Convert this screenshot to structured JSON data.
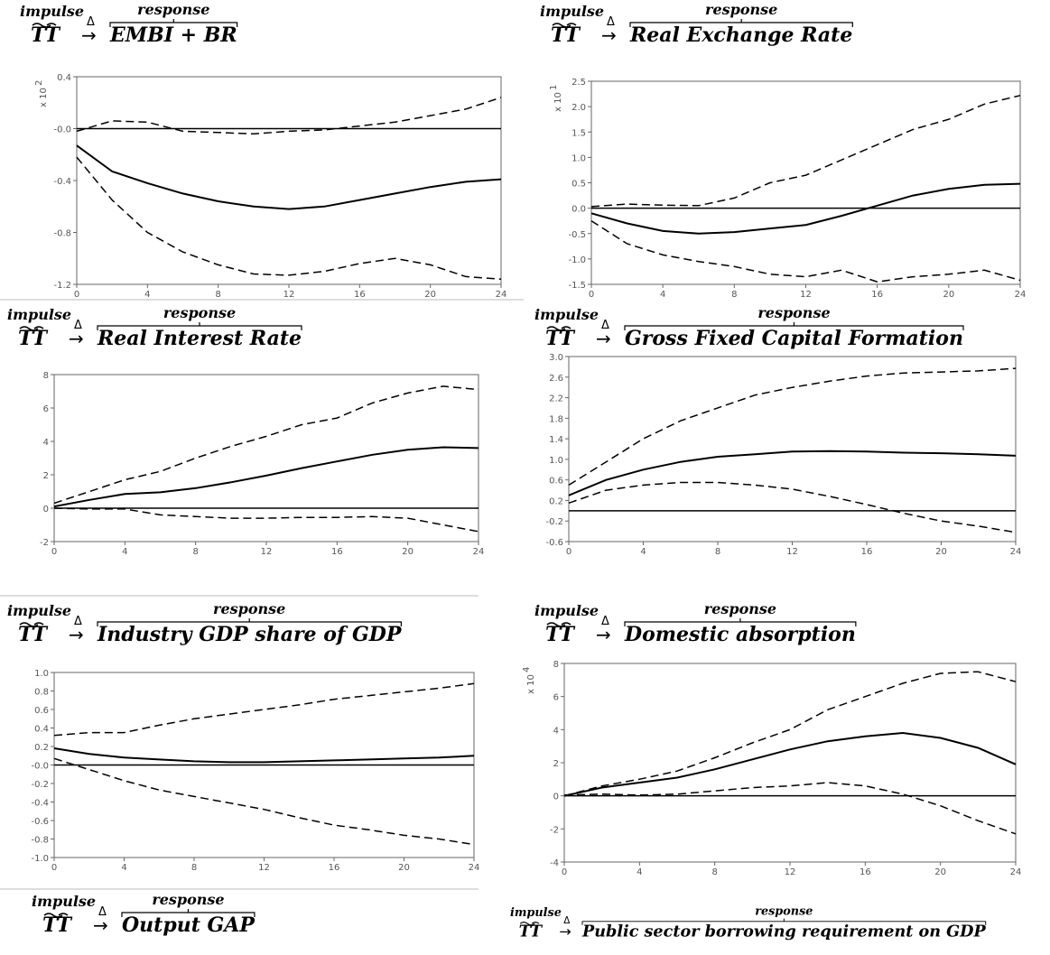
{
  "chart_data": [
    {
      "type": "line",
      "impulse_label": "impulse",
      "response_label": "response",
      "impulse_var": "TT",
      "operator": "Δ",
      "arrow": "→",
      "title": "EMBI + BR",
      "scale_label": "x 10",
      "scale_exponent": "2",
      "x": [
        0,
        2,
        4,
        6,
        8,
        10,
        12,
        14,
        16,
        18,
        20,
        22,
        24
      ],
      "xlim": [
        0,
        24
      ],
      "xticks": [
        0,
        4,
        8,
        12,
        16,
        20,
        24
      ],
      "ylim": [
        -1.2,
        0.4
      ],
      "yticks": [
        -1.2,
        -0.8,
        -0.4,
        {
          "value": 0,
          "label": "-0.0"
        },
        0.4
      ],
      "hline": 0,
      "series": [
        {
          "color": "#000",
          "dashed": true,
          "values": [
            -0.02,
            0.06,
            0.05,
            -0.02,
            -0.03,
            -0.04,
            -0.02,
            -0.01,
            0.02,
            0.05,
            0.1,
            0.15,
            0.24
          ]
        },
        {
          "color": "#000",
          "dashed": false,
          "values": [
            -0.13,
            -0.33,
            -0.42,
            -0.5,
            -0.56,
            -0.6,
            -0.62,
            -0.6,
            -0.55,
            -0.5,
            -0.45,
            -0.41,
            -0.39
          ]
        },
        {
          "color": "#000",
          "dashed": true,
          "values": [
            -0.22,
            -0.55,
            -0.8,
            -0.95,
            -1.05,
            -1.12,
            -1.13,
            -1.1,
            -1.04,
            -1.0,
            -1.05,
            -1.14,
            -1.16
          ]
        }
      ]
    },
    {
      "type": "line",
      "impulse_label": "impulse",
      "response_label": "response",
      "impulse_var": "TT",
      "operator": "Δ",
      "arrow": "→",
      "title": "Real Exchange Rate",
      "scale_label": "x 10",
      "scale_exponent": "1",
      "x": [
        0,
        2,
        4,
        6,
        8,
        10,
        12,
        14,
        16,
        18,
        20,
        22,
        24
      ],
      "xlim": [
        0,
        24
      ],
      "xticks": [
        0,
        4,
        8,
        12,
        16,
        20,
        24
      ],
      "ylim": [
        -1.5,
        2.5
      ],
      "yticks": [
        -1.5,
        {
          "value": -1,
          "label": "-1.0"
        },
        -0.5,
        {
          "value": 0,
          "label": "0.0"
        },
        0.5,
        {
          "value": 1,
          "label": "1.0"
        },
        1.5,
        {
          "value": 2,
          "label": "2.0"
        },
        2.5
      ],
      "hline": 0,
      "series": [
        {
          "color": "#000",
          "dashed": true,
          "values": [
            0.03,
            0.08,
            0.06,
            0.05,
            0.2,
            0.5,
            0.65,
            0.95,
            1.25,
            1.55,
            1.75,
            2.05,
            2.22
          ]
        },
        {
          "color": "#000",
          "dashed": false,
          "values": [
            -0.1,
            -0.3,
            -0.45,
            -0.5,
            -0.47,
            -0.4,
            -0.33,
            -0.15,
            0.05,
            0.25,
            0.38,
            0.46,
            0.48
          ]
        },
        {
          "color": "#000",
          "dashed": true,
          "values": [
            -0.25,
            -0.7,
            -0.92,
            -1.05,
            -1.15,
            -1.3,
            -1.35,
            -1.22,
            -1.45,
            -1.35,
            -1.3,
            -1.22,
            -1.42
          ]
        }
      ]
    },
    {
      "type": "line",
      "impulse_label": "impulse",
      "response_label": "response",
      "impulse_var": "TT",
      "operator": "Δ",
      "arrow": "→",
      "title": "Real Interest Rate",
      "x": [
        0,
        2,
        4,
        6,
        8,
        10,
        12,
        14,
        16,
        18,
        20,
        22,
        24
      ],
      "xlim": [
        0,
        24
      ],
      "xticks": [
        0,
        4,
        8,
        12,
        16,
        20,
        24
      ],
      "ylim": [
        -2,
        8
      ],
      "yticks": [
        -2,
        0,
        2,
        4,
        6,
        8
      ],
      "hline": 0,
      "series": [
        {
          "color": "#000",
          "dashed": true,
          "values": [
            0.3,
            1.0,
            1.7,
            2.2,
            3.0,
            3.7,
            4.3,
            5.0,
            5.4,
            6.3,
            6.9,
            7.3,
            7.1
          ]
        },
        {
          "color": "#000",
          "dashed": false,
          "values": [
            0.1,
            0.5,
            0.85,
            0.95,
            1.2,
            1.55,
            1.95,
            2.4,
            2.8,
            3.2,
            3.5,
            3.65,
            3.6
          ]
        },
        {
          "color": "#000",
          "dashed": true,
          "values": [
            0,
            -0.05,
            -0.05,
            -0.4,
            -0.5,
            -0.6,
            -0.6,
            -0.55,
            -0.55,
            -0.5,
            -0.6,
            -1.0,
            -1.4
          ]
        }
      ]
    },
    {
      "type": "line",
      "impulse_label": "impulse",
      "response_label": "response",
      "impulse_var": "TT",
      "operator": "Δ",
      "arrow": "→",
      "title": "Gross Fixed Capital Formation",
      "x": [
        0,
        2,
        4,
        6,
        8,
        10,
        12,
        14,
        16,
        18,
        20,
        22,
        24
      ],
      "xlim": [
        0,
        24
      ],
      "xticks": [
        0,
        4,
        8,
        12,
        16,
        20,
        24
      ],
      "ylim": [
        -0.6,
        3.0
      ],
      "yticks": [
        -0.6,
        -0.2,
        0.2,
        0.6,
        {
          "value": 1,
          "label": "1.0"
        },
        1.4,
        1.8,
        2.2,
        2.6,
        {
          "value": 3,
          "label": "3.0"
        }
      ],
      "hline": 0,
      "series": [
        {
          "color": "#000",
          "dashed": true,
          "values": [
            0.5,
            0.95,
            1.4,
            1.75,
            2.0,
            2.25,
            2.4,
            2.52,
            2.62,
            2.68,
            2.7,
            2.72,
            2.77
          ]
        },
        {
          "color": "#000",
          "dashed": false,
          "values": [
            0.3,
            0.6,
            0.8,
            0.95,
            1.05,
            1.1,
            1.15,
            1.16,
            1.15,
            1.13,
            1.12,
            1.1,
            1.07
          ]
        },
        {
          "color": "#000",
          "dashed": true,
          "values": [
            0.15,
            0.4,
            0.5,
            0.55,
            0.55,
            0.5,
            0.42,
            0.28,
            0.12,
            -0.05,
            -0.2,
            -0.3,
            -0.42
          ]
        }
      ]
    },
    {
      "type": "line",
      "impulse_label": "impulse",
      "response_label": "response",
      "impulse_var": "TT",
      "operator": "Δ",
      "arrow": "→",
      "title": "Industry GDP share of GDP",
      "x": [
        0,
        2,
        4,
        6,
        8,
        10,
        12,
        14,
        16,
        18,
        20,
        22,
        24
      ],
      "xlim": [
        0,
        24
      ],
      "xticks": [
        0,
        4,
        8,
        12,
        16,
        20,
        24
      ],
      "ylim": [
        -1.0,
        1.0
      ],
      "yticks": [
        {
          "value": -1,
          "label": "-1.0"
        },
        -0.8,
        -0.6,
        -0.4,
        -0.2,
        {
          "value": 0,
          "label": "-0.0"
        },
        0.2,
        0.4,
        0.6,
        0.8,
        {
          "value": 1,
          "label": "1.0"
        }
      ],
      "hline": 0,
      "series": [
        {
          "color": "#000",
          "dashed": true,
          "values": [
            0.32,
            0.35,
            0.35,
            0.43,
            0.5,
            0.55,
            0.6,
            0.65,
            0.71,
            0.75,
            0.79,
            0.83,
            0.88
          ]
        },
        {
          "color": "#000",
          "dashed": false,
          "values": [
            0.18,
            0.12,
            0.08,
            0.06,
            0.04,
            0.03,
            0.03,
            0.04,
            0.05,
            0.06,
            0.07,
            0.08,
            0.1
          ]
        },
        {
          "color": "#000",
          "dashed": true,
          "values": [
            0.07,
            -0.05,
            -0.17,
            -0.27,
            -0.34,
            -0.41,
            -0.48,
            -0.57,
            -0.65,
            -0.7,
            -0.76,
            -0.8,
            -0.86
          ]
        }
      ]
    },
    {
      "type": "line",
      "impulse_label": "impulse",
      "response_label": "response",
      "impulse_var": "TT",
      "operator": "Δ",
      "arrow": "→",
      "title": "Domestic absorption",
      "scale_label": "x 10",
      "scale_exponent": "4",
      "x": [
        0,
        2,
        4,
        6,
        8,
        10,
        12,
        14,
        16,
        18,
        20,
        22,
        24
      ],
      "xlim": [
        0,
        24
      ],
      "xticks": [
        0,
        4,
        8,
        12,
        16,
        20,
        24
      ],
      "ylim": [
        -4,
        8
      ],
      "yticks": [
        -4,
        -2,
        0,
        2,
        4,
        6,
        8
      ],
      "hline": 0,
      "series": [
        {
          "color": "#000",
          "dashed": true,
          "values": [
            0,
            0.6,
            1.0,
            1.5,
            2.3,
            3.2,
            4.0,
            5.2,
            6.0,
            6.8,
            7.4,
            7.5,
            6.9
          ]
        },
        {
          "color": "#000",
          "dashed": false,
          "values": [
            0,
            0.5,
            0.8,
            1.1,
            1.6,
            2.2,
            2.8,
            3.3,
            3.6,
            3.8,
            3.5,
            2.9,
            1.9
          ]
        },
        {
          "color": "#000",
          "dashed": true,
          "values": [
            0.05,
            0.1,
            0.05,
            0.1,
            0.3,
            0.5,
            0.6,
            0.8,
            0.6,
            0.1,
            -0.6,
            -1.5,
            -2.3
          ]
        }
      ]
    }
  ],
  "extra_headers": [
    {
      "impulse_label": "impulse",
      "response_label": "response",
      "impulse_var": "TT",
      "operator": "Δ",
      "arrow": "→",
      "title": "Output GAP"
    },
    {
      "impulse_label": "impulse",
      "response_label": "response",
      "impulse_var": "TT",
      "operator": "Δ",
      "arrow": "→",
      "title": "Public sector borrowing requirement on GDP"
    }
  ]
}
